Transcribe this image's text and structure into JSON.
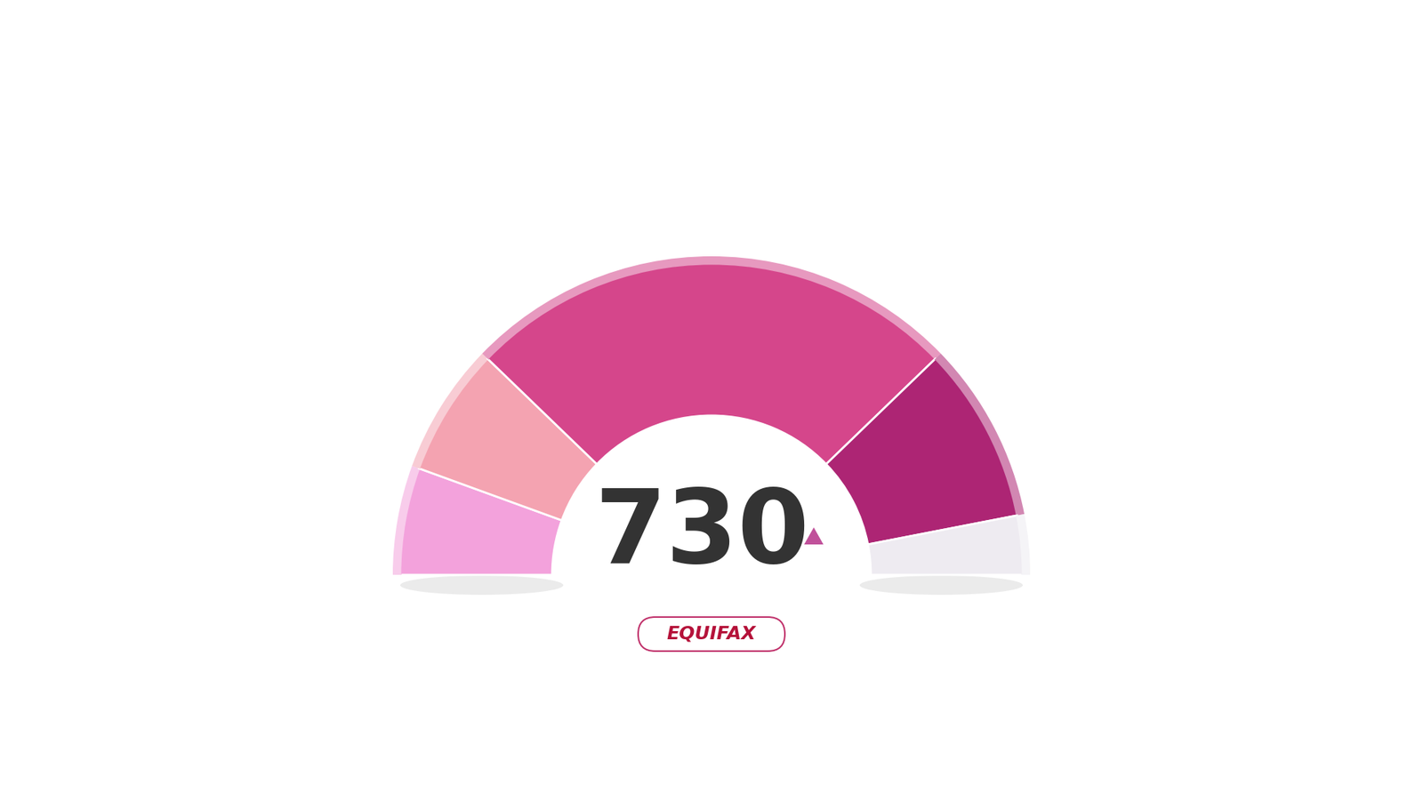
{
  "chart_data": {
    "type": "gauge",
    "value": 730,
    "source": "EQUIFAX"
  }
}
